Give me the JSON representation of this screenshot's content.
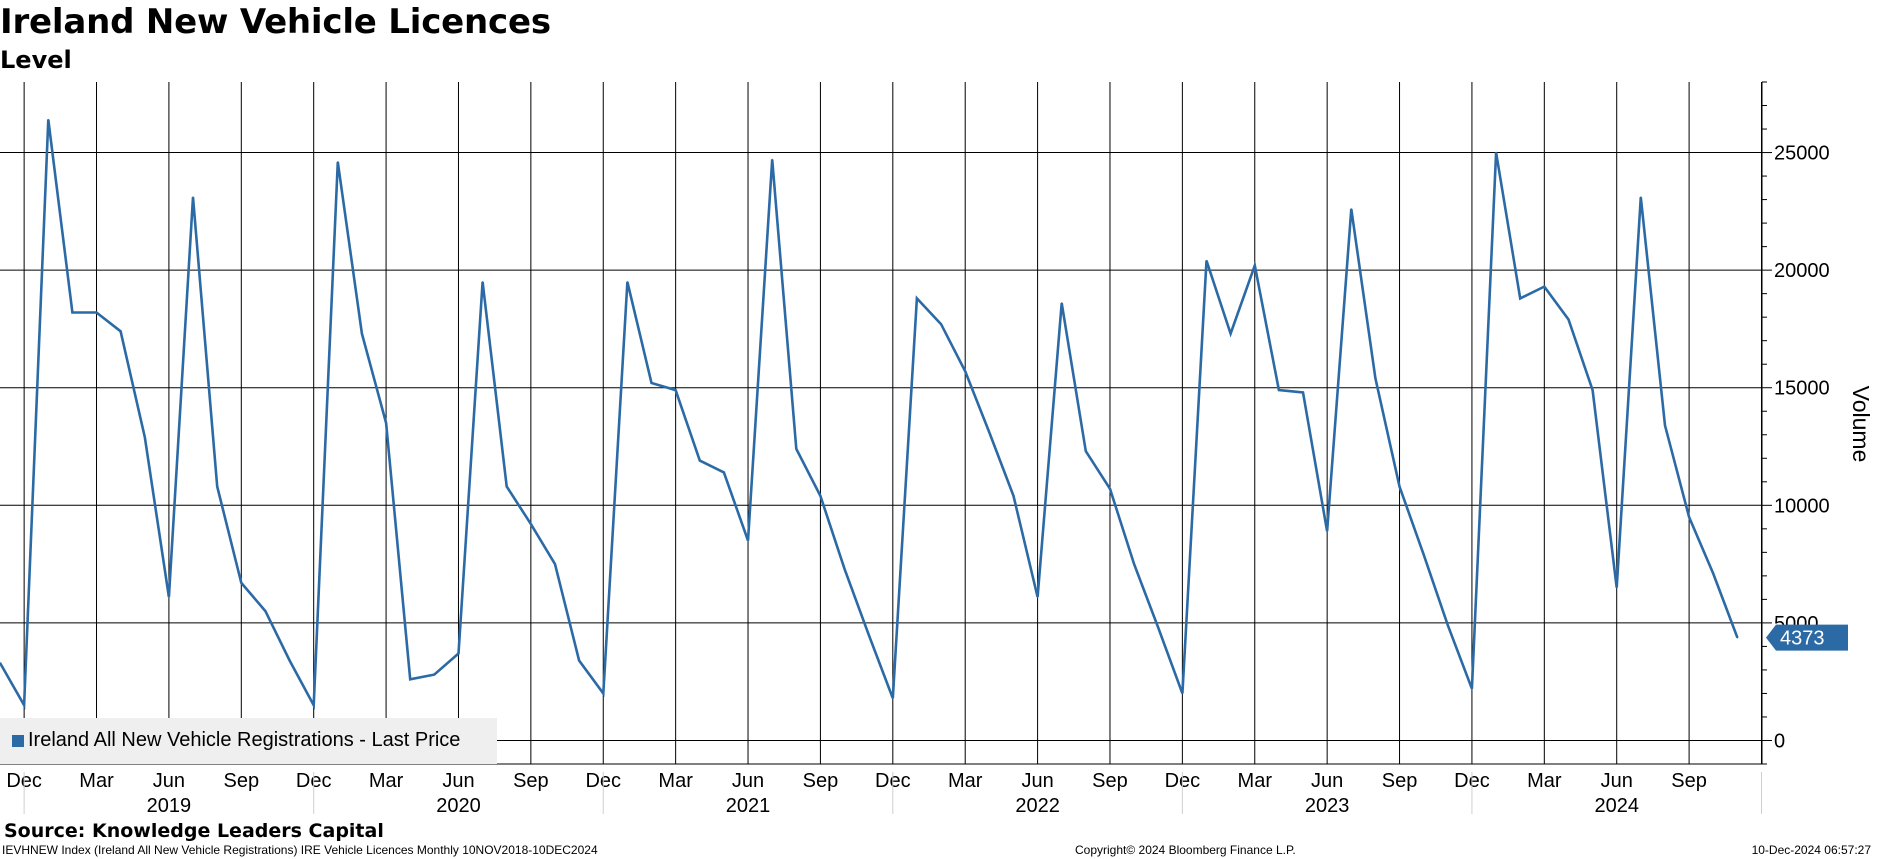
{
  "header": {
    "title": "Ireland New Vehicle Licences",
    "subtitle": "Level"
  },
  "source": "Source: Knowledge Leaders Capital",
  "footer": {
    "left": "IEVHNEW Index (Ireland All New Vehicle Registrations) IRE Vehicle Licences  Monthly 10NOV2018-10DEC2024",
    "center": "Copyright© 2024 Bloomberg Finance L.P.",
    "right": "10-Dec-2024 06:57:27"
  },
  "colors": {
    "series": "#2c6aa6",
    "grid": "#000000",
    "legend_bg": "#efefef"
  },
  "chart_data": {
    "type": "line",
    "ylabel": "Volume",
    "ylim": [
      -1000,
      28000
    ],
    "yticks": [
      0,
      5000,
      10000,
      15000,
      20000,
      25000
    ],
    "grid": true,
    "legend_position": "bottom-left",
    "last_value_label": "4373",
    "x_month_labels": [
      "Dec",
      "Mar",
      "Jun",
      "Sep",
      "Dec",
      "Mar",
      "Jun",
      "Sep",
      "Dec",
      "Mar",
      "Jun",
      "Sep",
      "Dec",
      "Mar",
      "Jun",
      "Sep",
      "Dec",
      "Mar",
      "Jun",
      "Sep",
      "Dec",
      "Mar",
      "Jun",
      "Sep"
    ],
    "x_year_labels": [
      "2019",
      "2020",
      "2021",
      "2022",
      "2023",
      "2024"
    ],
    "series": [
      {
        "name": "Ireland All New Vehicle Registrations - Last Price",
        "x": [
          "2018-11",
          "2018-12",
          "2019-01",
          "2019-02",
          "2019-03",
          "2019-04",
          "2019-05",
          "2019-06",
          "2019-07",
          "2019-08",
          "2019-09",
          "2019-10",
          "2019-11",
          "2019-12",
          "2020-01",
          "2020-02",
          "2020-03",
          "2020-04",
          "2020-05",
          "2020-06",
          "2020-07",
          "2020-08",
          "2020-09",
          "2020-10",
          "2020-11",
          "2020-12",
          "2021-01",
          "2021-02",
          "2021-03",
          "2021-04",
          "2021-05",
          "2021-06",
          "2021-07",
          "2021-08",
          "2021-09",
          "2021-10",
          "2021-11",
          "2021-12",
          "2022-01",
          "2022-02",
          "2022-03",
          "2022-04",
          "2022-05",
          "2022-06",
          "2022-07",
          "2022-08",
          "2022-09",
          "2022-10",
          "2022-11",
          "2022-12",
          "2023-01",
          "2023-02",
          "2023-03",
          "2023-04",
          "2023-05",
          "2023-06",
          "2023-07",
          "2023-08",
          "2023-09",
          "2023-10",
          "2023-11",
          "2023-12",
          "2024-01",
          "2024-02",
          "2024-03",
          "2024-04",
          "2024-05",
          "2024-06",
          "2024-07",
          "2024-08",
          "2024-09",
          "2024-10",
          "2024-11"
        ],
        "values": [
          3300,
          1500,
          26400,
          18200,
          18200,
          17400,
          12900,
          6100,
          23100,
          10800,
          6700,
          5500,
          3400,
          1500,
          24600,
          17300,
          13500,
          2600,
          2800,
          3700,
          19500,
          10800,
          9200,
          7500,
          3400,
          2000,
          19500,
          15200,
          14900,
          11900,
          11400,
          8500,
          24700,
          12400,
          10400,
          7300,
          4500,
          1800,
          18800,
          17700,
          15700,
          13100,
          10400,
          6100,
          18600,
          12300,
          10700,
          7500,
          4800,
          2000,
          20400,
          17300,
          20200,
          14900,
          14800,
          8900,
          22600,
          15400,
          10800,
          7900,
          4900,
          2200,
          25000,
          18800,
          19300,
          17900,
          14900,
          6500,
          23100,
          13400,
          9500,
          7100,
          4373
        ]
      }
    ]
  }
}
